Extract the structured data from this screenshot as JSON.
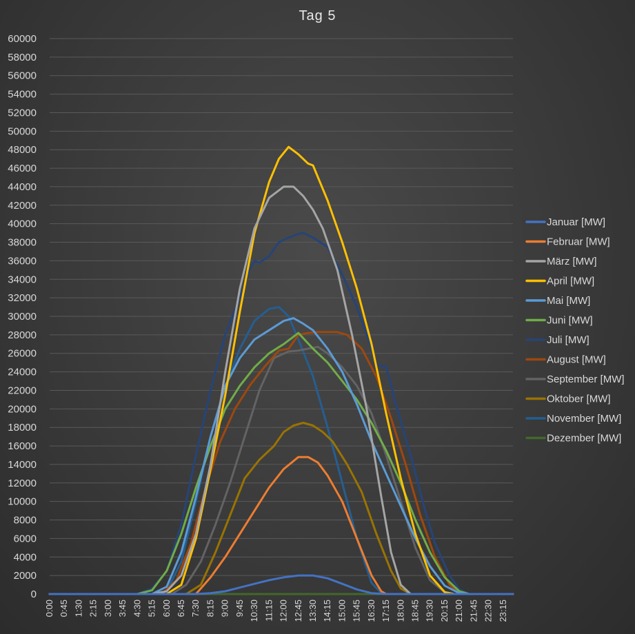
{
  "chart_data": {
    "type": "line",
    "title": "Tag 5",
    "xlabel": "",
    "ylabel": "",
    "ylim": [
      0,
      60000
    ],
    "yticks": [
      0,
      2000,
      4000,
      6000,
      8000,
      10000,
      12000,
      14000,
      16000,
      18000,
      20000,
      22000,
      24000,
      26000,
      28000,
      30000,
      32000,
      34000,
      36000,
      38000,
      40000,
      42000,
      44000,
      46000,
      48000,
      50000,
      52000,
      54000,
      56000,
      58000,
      60000
    ],
    "x_tick_labels": [
      "0:00",
      "0:45",
      "1:30",
      "2:15",
      "3:00",
      "3:45",
      "4:30",
      "5:15",
      "6:00",
      "6:45",
      "7:30",
      "8:15",
      "9:00",
      "9:45",
      "10:30",
      "11:15",
      "12:00",
      "12:45",
      "13:30",
      "14:15",
      "15:00",
      "15:45",
      "16:30",
      "17:15",
      "18:00",
      "18:45",
      "19:30",
      "20:15",
      "21:00",
      "21:45",
      "22:30",
      "23:15"
    ],
    "legend_position": "right",
    "grid": true,
    "series": [
      {
        "name": "Januar [MW]",
        "color": "#4472c4",
        "points": [
          [
            "0:00",
            0
          ],
          [
            "7:30",
            0
          ],
          [
            "8:15",
            100
          ],
          [
            "9:00",
            300
          ],
          [
            "9:45",
            700
          ],
          [
            "10:30",
            1100
          ],
          [
            "11:15",
            1500
          ],
          [
            "12:00",
            1800
          ],
          [
            "12:45",
            2000
          ],
          [
            "13:30",
            2000
          ],
          [
            "14:15",
            1700
          ],
          [
            "15:00",
            1100
          ],
          [
            "15:45",
            500
          ],
          [
            "16:30",
            100
          ],
          [
            "17:15",
            0
          ],
          [
            "23:45",
            0
          ]
        ]
      },
      {
        "name": "Februar [MW]",
        "color": "#ed7d31",
        "points": [
          [
            "0:00",
            0
          ],
          [
            "7:30",
            0
          ],
          [
            "8:15",
            1800
          ],
          [
            "9:00",
            4000
          ],
          [
            "9:45",
            6500
          ],
          [
            "10:30",
            9000
          ],
          [
            "11:15",
            11500
          ],
          [
            "12:00",
            13500
          ],
          [
            "12:45",
            14800
          ],
          [
            "13:15",
            14800
          ],
          [
            "13:45",
            14200
          ],
          [
            "14:15",
            12800
          ],
          [
            "15:00",
            10000
          ],
          [
            "15:45",
            6000
          ],
          [
            "16:30",
            2000
          ],
          [
            "17:00",
            300
          ],
          [
            "17:15",
            0
          ],
          [
            "23:45",
            0
          ]
        ]
      },
      {
        "name": "März [MW]",
        "color": "#a5a5a5",
        "points": [
          [
            "0:00",
            0
          ],
          [
            "5:15",
            0
          ],
          [
            "6:00",
            300
          ],
          [
            "6:45",
            2000
          ],
          [
            "7:30",
            6500
          ],
          [
            "8:15",
            14000
          ],
          [
            "9:00",
            24000
          ],
          [
            "9:45",
            33000
          ],
          [
            "10:30",
            39500
          ],
          [
            "11:15",
            42800
          ],
          [
            "12:00",
            44000
          ],
          [
            "12:30",
            44000
          ],
          [
            "13:00",
            43000
          ],
          [
            "13:30",
            41500
          ],
          [
            "14:00",
            39500
          ],
          [
            "14:45",
            35000
          ],
          [
            "15:30",
            28000
          ],
          [
            "16:15",
            20000
          ],
          [
            "17:00",
            10500
          ],
          [
            "17:30",
            4500
          ],
          [
            "18:00",
            1000
          ],
          [
            "18:30",
            0
          ],
          [
            "23:45",
            0
          ]
        ]
      },
      {
        "name": "April [MW]",
        "color": "#ffc000",
        "points": [
          [
            "0:00",
            0
          ],
          [
            "6:00",
            0
          ],
          [
            "6:45",
            1000
          ],
          [
            "7:30",
            6000
          ],
          [
            "8:15",
            13500
          ],
          [
            "9:00",
            21500
          ],
          [
            "9:45",
            30500
          ],
          [
            "10:30",
            39000
          ],
          [
            "11:15",
            44500
          ],
          [
            "11:45",
            47000
          ],
          [
            "12:15",
            48300
          ],
          [
            "12:45",
            47500
          ],
          [
            "13:15",
            46500
          ],
          [
            "13:30",
            46300
          ],
          [
            "14:15",
            42500
          ],
          [
            "15:00",
            38000
          ],
          [
            "15:45",
            33000
          ],
          [
            "16:30",
            27000
          ],
          [
            "17:15",
            19500
          ],
          [
            "18:00",
            12500
          ],
          [
            "18:45",
            6500
          ],
          [
            "19:30",
            2000
          ],
          [
            "20:15",
            200
          ],
          [
            "20:45",
            0
          ],
          [
            "23:45",
            0
          ]
        ]
      },
      {
        "name": "Mai [MW]",
        "color": "#5b9bd5",
        "points": [
          [
            "0:00",
            0
          ],
          [
            "5:15",
            0
          ],
          [
            "6:00",
            800
          ],
          [
            "6:45",
            4500
          ],
          [
            "7:30",
            10500
          ],
          [
            "8:15",
            17000
          ],
          [
            "9:00",
            22500
          ],
          [
            "9:45",
            25500
          ],
          [
            "10:30",
            27500
          ],
          [
            "11:15",
            28500
          ],
          [
            "12:00",
            29500
          ],
          [
            "12:30",
            29800
          ],
          [
            "13:00",
            29200
          ],
          [
            "13:30",
            28500
          ],
          [
            "14:15",
            26500
          ],
          [
            "15:00",
            24000
          ],
          [
            "15:45",
            20500
          ],
          [
            "16:30",
            16500
          ],
          [
            "17:15",
            13000
          ],
          [
            "18:00",
            9500
          ],
          [
            "18:45",
            6000
          ],
          [
            "19:30",
            3000
          ],
          [
            "20:15",
            900
          ],
          [
            "21:00",
            100
          ],
          [
            "21:30",
            0
          ],
          [
            "23:45",
            0
          ]
        ]
      },
      {
        "name": "Juni [MW]",
        "color": "#70ad47",
        "points": [
          [
            "0:00",
            0
          ],
          [
            "4:30",
            0
          ],
          [
            "5:15",
            400
          ],
          [
            "6:00",
            2500
          ],
          [
            "6:45",
            6500
          ],
          [
            "7:30",
            11500
          ],
          [
            "8:15",
            16000
          ],
          [
            "9:00",
            20000
          ],
          [
            "9:45",
            22500
          ],
          [
            "10:30",
            24500
          ],
          [
            "11:15",
            26000
          ],
          [
            "12:00",
            27000
          ],
          [
            "12:45",
            28200
          ],
          [
            "13:30",
            26500
          ],
          [
            "14:15",
            25000
          ],
          [
            "15:00",
            23000
          ],
          [
            "15:45",
            21000
          ],
          [
            "16:30",
            18500
          ],
          [
            "17:15",
            15500
          ],
          [
            "18:00",
            12000
          ],
          [
            "18:45",
            8000
          ],
          [
            "19:30",
            4500
          ],
          [
            "20:15",
            1800
          ],
          [
            "21:00",
            300
          ],
          [
            "21:30",
            0
          ],
          [
            "23:45",
            0
          ]
        ]
      },
      {
        "name": "Juli [MW]",
        "color": "#264478",
        "points": [
          [
            "0:00",
            0
          ],
          [
            "4:30",
            0
          ],
          [
            "5:15",
            600
          ],
          [
            "6:00",
            2500
          ],
          [
            "6:45",
            7500
          ],
          [
            "7:30",
            15000
          ],
          [
            "8:15",
            22000
          ],
          [
            "9:00",
            28000
          ],
          [
            "9:45",
            32000
          ],
          [
            "10:15",
            35000
          ],
          [
            "10:30",
            36000
          ],
          [
            "10:45",
            35800
          ],
          [
            "11:15",
            36500
          ],
          [
            "11:45",
            38000
          ],
          [
            "12:15",
            38500
          ],
          [
            "12:45",
            38900
          ],
          [
            "13:00",
            39000
          ],
          [
            "13:30",
            38500
          ],
          [
            "14:15",
            37500
          ],
          [
            "15:00",
            34500
          ],
          [
            "15:45",
            31000
          ],
          [
            "16:30",
            26500
          ],
          [
            "16:45",
            24800
          ],
          [
            "17:15",
            24500
          ],
          [
            "17:45",
            20500
          ],
          [
            "18:30",
            15000
          ],
          [
            "19:15",
            9000
          ],
          [
            "19:45",
            5500
          ],
          [
            "20:30",
            2000
          ],
          [
            "21:00",
            500
          ],
          [
            "21:30",
            0
          ],
          [
            "23:45",
            0
          ]
        ]
      },
      {
        "name": "August [MW]",
        "color": "#9e480e",
        "points": [
          [
            "0:00",
            0
          ],
          [
            "5:45",
            0
          ],
          [
            "6:30",
            1500
          ],
          [
            "7:15",
            5500
          ],
          [
            "8:00",
            11500
          ],
          [
            "8:45",
            16500
          ],
          [
            "9:30",
            20000
          ],
          [
            "10:15",
            22500
          ],
          [
            "11:00",
            24500
          ],
          [
            "11:45",
            26300
          ],
          [
            "12:15",
            26500
          ],
          [
            "12:45",
            28000
          ],
          [
            "13:15",
            28200
          ],
          [
            "13:45",
            28300
          ],
          [
            "14:15",
            28300
          ],
          [
            "14:45",
            28300
          ],
          [
            "15:15",
            28000
          ],
          [
            "16:00",
            26500
          ],
          [
            "16:45",
            23500
          ],
          [
            "17:30",
            19000
          ],
          [
            "18:15",
            14000
          ],
          [
            "19:00",
            8500
          ],
          [
            "19:45",
            4000
          ],
          [
            "20:30",
            1000
          ],
          [
            "21:00",
            100
          ],
          [
            "21:30",
            0
          ],
          [
            "23:45",
            0
          ]
        ]
      },
      {
        "name": "September [MW]",
        "color": "#636363",
        "points": [
          [
            "0:00",
            0
          ],
          [
            "6:15",
            0
          ],
          [
            "7:00",
            1000
          ],
          [
            "7:45",
            3500
          ],
          [
            "8:30",
            7500
          ],
          [
            "9:15",
            12000
          ],
          [
            "10:00",
            17000
          ],
          [
            "10:45",
            22000
          ],
          [
            "11:30",
            25500
          ],
          [
            "12:15",
            26200
          ],
          [
            "12:45",
            26300
          ],
          [
            "13:15",
            26500
          ],
          [
            "13:45",
            26700
          ],
          [
            "14:15",
            26000
          ],
          [
            "15:00",
            24500
          ],
          [
            "15:45",
            22500
          ],
          [
            "16:30",
            19500
          ],
          [
            "17:15",
            15000
          ],
          [
            "18:00",
            10000
          ],
          [
            "18:45",
            5000
          ],
          [
            "19:30",
            1500
          ],
          [
            "20:15",
            200
          ],
          [
            "20:45",
            0
          ],
          [
            "23:45",
            0
          ]
        ]
      },
      {
        "name": "Oktober [MW]",
        "color": "#997300",
        "points": [
          [
            "0:00",
            0
          ],
          [
            "7:00",
            0
          ],
          [
            "7:45",
            1000
          ],
          [
            "8:30",
            4500
          ],
          [
            "9:15",
            8500
          ],
          [
            "10:00",
            12500
          ],
          [
            "10:45",
            14500
          ],
          [
            "11:30",
            16000
          ],
          [
            "12:00",
            17500
          ],
          [
            "12:30",
            18200
          ],
          [
            "13:00",
            18500
          ],
          [
            "13:30",
            18200
          ],
          [
            "14:00",
            17500
          ],
          [
            "14:30",
            16500
          ],
          [
            "15:15",
            14000
          ],
          [
            "16:00",
            11000
          ],
          [
            "16:45",
            6500
          ],
          [
            "17:30",
            2500
          ],
          [
            "18:00",
            600
          ],
          [
            "18:30",
            0
          ],
          [
            "23:45",
            0
          ]
        ]
      },
      {
        "name": "November [MW]",
        "color": "#255e91",
        "points": [
          [
            "0:00",
            0
          ],
          [
            "5:15",
            0
          ],
          [
            "6:00",
            300
          ],
          [
            "6:45",
            3500
          ],
          [
            "7:30",
            10000
          ],
          [
            "8:15",
            17000
          ],
          [
            "9:00",
            22500
          ],
          [
            "9:45",
            26500
          ],
          [
            "10:30",
            29500
          ],
          [
            "11:15",
            30800
          ],
          [
            "11:45",
            31000
          ],
          [
            "12:15",
            30000
          ],
          [
            "12:45",
            27500
          ],
          [
            "13:30",
            23500
          ],
          [
            "14:15",
            18000
          ],
          [
            "15:00",
            12000
          ],
          [
            "15:45",
            6000
          ],
          [
            "16:30",
            1200
          ],
          [
            "17:00",
            100
          ],
          [
            "17:15",
            0
          ],
          [
            "23:45",
            0
          ]
        ]
      },
      {
        "name": "Dezember [MW]",
        "color": "#43682b",
        "points": [
          [
            "0:00",
            0
          ],
          [
            "23:45",
            0
          ]
        ]
      }
    ]
  }
}
